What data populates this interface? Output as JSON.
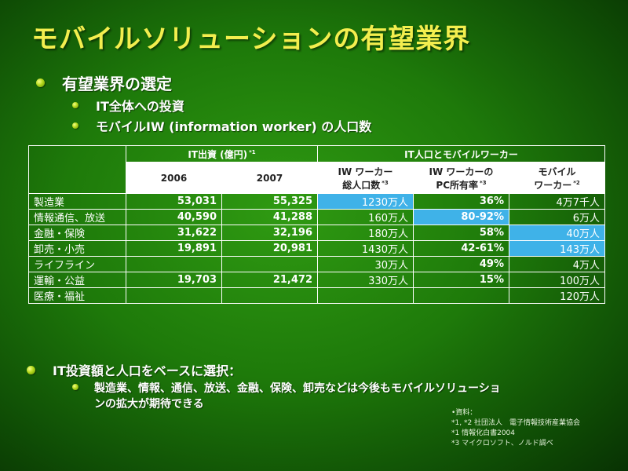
{
  "title": "モバイルソリューションの有望業界",
  "bullets": {
    "b1": "有望業界の選定",
    "b1_1": "IT全体への投資",
    "b1_2": "モバイルIW (information worker) の人口数",
    "b2": "IT投資額と人口をベースに選択：",
    "b2_text": "製造業、情報、通信、放送、金融、保険、卸売などは今後もモバイルソリューションの拡大が期待できる"
  },
  "table": {
    "group1": "IT出資 (億円)",
    "group1_note": "*1",
    "group2": "IT人口とモバイルワーカー",
    "col_2006": "2006",
    "col_2007": "2007",
    "col_iw_line1": "IW ワーカー",
    "col_iw_line2": "総人口数",
    "col_iw_note": "*3",
    "col_pc_line1": "IW ワーカーの",
    "col_pc_line2": "PC所有率",
    "col_pc_note": "*3",
    "col_mob_line1": "モバイル",
    "col_mob_line2": "ワーカー",
    "col_mob_note": "*2",
    "rows": [
      {
        "label": "製造業",
        "y2006": "53,031",
        "y2007": "55,325",
        "iw": "1230万人",
        "pc": "36%",
        "mobile": "4万7千人"
      },
      {
        "label": "情報通信、放送",
        "y2006": "40,590",
        "y2007": "41,288",
        "iw": "160万人",
        "pc": "80-92%",
        "mobile": "6万人"
      },
      {
        "label": "金融・保険",
        "y2006": "31,622",
        "y2007": "32,196",
        "iw": "180万人",
        "pc": "58%",
        "mobile": "40万人"
      },
      {
        "label": "卸売・小売",
        "y2006": "19,891",
        "y2007": "20,981",
        "iw": "1430万人",
        "pc": "42-61%",
        "mobile": "143万人"
      },
      {
        "label": "ライフライン",
        "y2006": "",
        "y2007": "",
        "iw": "30万人",
        "pc": "49%",
        "mobile": "4万人"
      },
      {
        "label": "運輸・公益",
        "y2006": "19,703",
        "y2007": "21,472",
        "iw": "330万人",
        "pc": "15%",
        "mobile": "100万人"
      },
      {
        "label": "医療・福祉",
        "y2006": "",
        "y2007": "",
        "iw": "",
        "pc": "",
        "mobile": "120万人"
      }
    ]
  },
  "notes": {
    "header": "•資料：",
    "n1": "*1, *2 社団法人　電子情報技術産業協会",
    "n2": "*1 情報化白書2004",
    "n3": "*3 マイクロソフト、ノルド調べ"
  },
  "colors": {
    "title": "#f3ee4e",
    "highlight": "#3fb2e8",
    "background": "#1e7a0a"
  }
}
